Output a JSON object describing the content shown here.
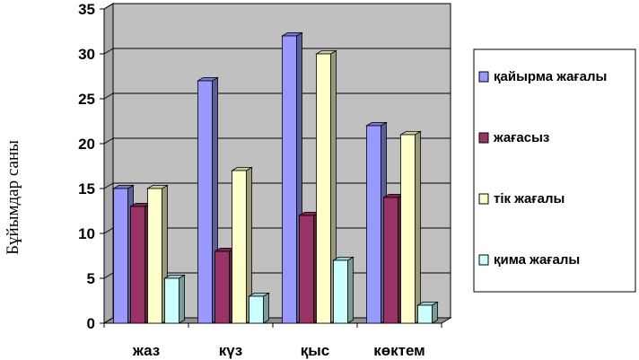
{
  "chart_data": {
    "type": "bar",
    "variant": "3d-clustered-column",
    "ylabel": "Бұйымдар саны",
    "xlabel": "",
    "ylim": [
      0,
      35
    ],
    "yticks": [
      0,
      5,
      10,
      15,
      20,
      25,
      30,
      35
    ],
    "grid": true,
    "legend_position": "right",
    "categories": [
      "жаз",
      "күз",
      "қыс",
      "көктем"
    ],
    "series": [
      {
        "name": "қайырма жағалы",
        "values": [
          15,
          27,
          32,
          22
        ],
        "color": "#9999ff"
      },
      {
        "name": "жағасыз",
        "values": [
          13,
          8,
          12,
          14
        ],
        "color": "#993366"
      },
      {
        "name": "тік жағалы",
        "values": [
          15,
          17,
          30,
          21
        ],
        "color": "#ffffcc"
      },
      {
        "name": "қима жағалы",
        "values": [
          5,
          3,
          7,
          2
        ],
        "color": "#ccffff"
      }
    ],
    "wall_color": "#c0c0c0"
  }
}
